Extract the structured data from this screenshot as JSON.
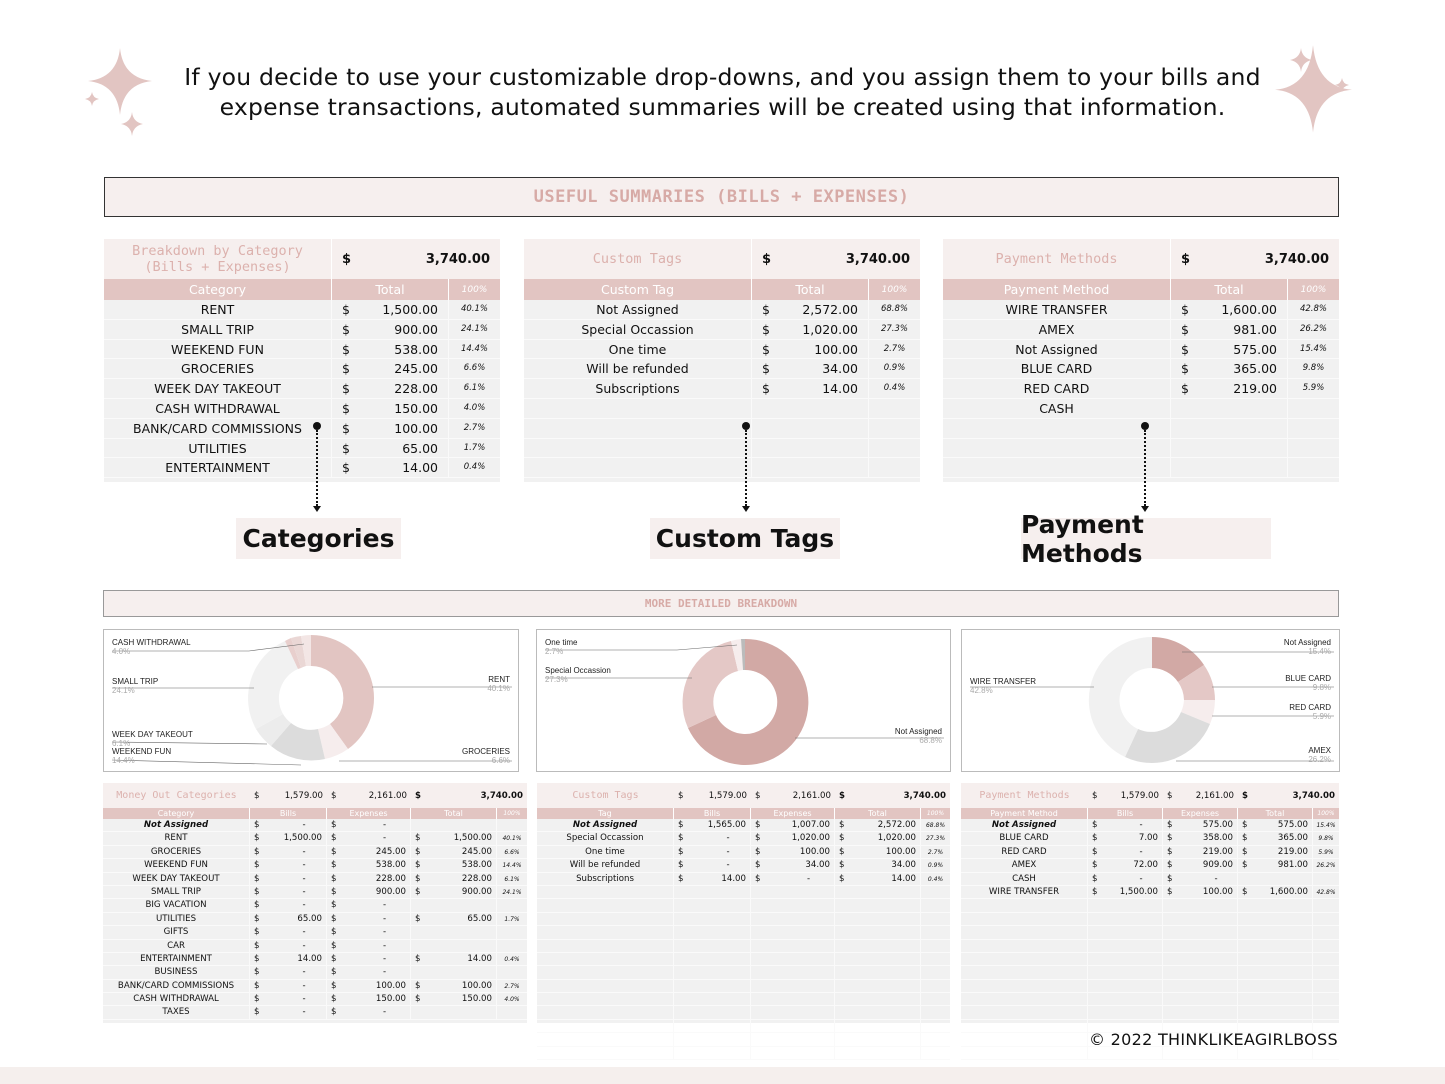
{
  "intro": {
    "line1": "If you decide to use your customizable drop-downs, and you assign them to your bills and",
    "line2": "expense transactions, automated summaries will be created using that information."
  },
  "colors": {
    "accent_pink": "#e2c5c2",
    "title_pink": "#d7aaa6",
    "panel_bg": "#f6efee",
    "row_bg": "#f1f1f1"
  },
  "banner_title": "USEFUL SUMMARIES (BILLS + EXPENSES)",
  "summaries": {
    "category": {
      "title_line1": "Breakdown by Category",
      "title_line2": "(Bills + Expenses)",
      "currency": "$",
      "total": "3,740.00",
      "col_name": "Category",
      "col_total": "Total",
      "col_pct": "100%",
      "rows": [
        {
          "name": "RENT",
          "cur": "$",
          "value": "1,500.00",
          "pct": "40.1%"
        },
        {
          "name": "SMALL TRIP",
          "cur": "$",
          "value": "900.00",
          "pct": "24.1%"
        },
        {
          "name": "WEEKEND FUN",
          "cur": "$",
          "value": "538.00",
          "pct": "14.4%"
        },
        {
          "name": "GROCERIES",
          "cur": "$",
          "value": "245.00",
          "pct": "6.6%"
        },
        {
          "name": "WEEK DAY TAKEOUT",
          "cur": "$",
          "value": "228.00",
          "pct": "6.1%"
        },
        {
          "name": "CASH WITHDRAWAL",
          "cur": "$",
          "value": "150.00",
          "pct": "4.0%"
        },
        {
          "name": "BANK/CARD COMMISSIONS",
          "cur": "$",
          "value": "100.00",
          "pct": "2.7%"
        },
        {
          "name": "UTILITIES",
          "cur": "$",
          "value": "65.00",
          "pct": "1.7%"
        },
        {
          "name": "ENTERTAINMENT",
          "cur": "$",
          "value": "14.00",
          "pct": "0.4%"
        }
      ]
    },
    "tags": {
      "title_line1": "Custom Tags",
      "currency": "$",
      "total": "3,740.00",
      "col_name": "Custom Tag",
      "col_total": "Total",
      "col_pct": "100%",
      "rows": [
        {
          "name": "Not Assigned",
          "cur": "$",
          "value": "2,572.00",
          "pct": "68.8%"
        },
        {
          "name": "Special Occassion",
          "cur": "$",
          "value": "1,020.00",
          "pct": "27.3%"
        },
        {
          "name": "One time",
          "cur": "$",
          "value": "100.00",
          "pct": "2.7%"
        },
        {
          "name": "Will be refunded",
          "cur": "$",
          "value": "34.00",
          "pct": "0.9%"
        },
        {
          "name": "Subscriptions",
          "cur": "$",
          "value": "14.00",
          "pct": "0.4%"
        },
        {
          "name": "",
          "cur": "",
          "value": "",
          "pct": ""
        },
        {
          "name": "",
          "cur": "",
          "value": "",
          "pct": ""
        },
        {
          "name": "",
          "cur": "",
          "value": "",
          "pct": ""
        },
        {
          "name": "",
          "cur": "",
          "value": "",
          "pct": ""
        }
      ]
    },
    "payment": {
      "title_line1": "Payment Methods",
      "currency": "$",
      "total": "3,740.00",
      "col_name": "Payment Method",
      "col_total": "Total",
      "col_pct": "100%",
      "rows": [
        {
          "name": "WIRE TRANSFER",
          "cur": "$",
          "value": "1,600.00",
          "pct": "42.8%"
        },
        {
          "name": "AMEX",
          "cur": "$",
          "value": "981.00",
          "pct": "26.2%"
        },
        {
          "name": "Not Assigned",
          "cur": "$",
          "value": "575.00",
          "pct": "15.4%"
        },
        {
          "name": "BLUE CARD",
          "cur": "$",
          "value": "365.00",
          "pct": "9.8%"
        },
        {
          "name": "RED CARD",
          "cur": "$",
          "value": "219.00",
          "pct": "5.9%"
        },
        {
          "name": "CASH",
          "cur": "",
          "value": "",
          "pct": ""
        },
        {
          "name": "",
          "cur": "",
          "value": "",
          "pct": ""
        },
        {
          "name": "",
          "cur": "",
          "value": "",
          "pct": ""
        },
        {
          "name": "",
          "cur": "",
          "value": "",
          "pct": ""
        }
      ]
    }
  },
  "labels": {
    "categories": "Categories",
    "custom_tags": "Custom Tags",
    "payment_methods": "Payment Methods"
  },
  "banner2_title": "MORE DETAILED BREAKDOWN",
  "charts": {
    "category": [
      {
        "name": "CASH WITHDRAWAL",
        "pct": "4.0%"
      },
      {
        "name": "SMALL TRIP",
        "pct": "24.1%"
      },
      {
        "name": "WEEK DAY TAKEOUT",
        "pct": "6.1%"
      },
      {
        "name": "WEEKEND FUN",
        "pct": "14.4%"
      },
      {
        "name": "RENT",
        "pct": "40.1%"
      },
      {
        "name": "GROCERIES",
        "pct": "6.6%"
      }
    ],
    "tags": [
      {
        "name": "One time",
        "pct": "2.7%"
      },
      {
        "name": "Special Occassion",
        "pct": "27.3%"
      },
      {
        "name": "Not Assigned",
        "pct": "68.8%"
      }
    ],
    "payment": [
      {
        "name": "WIRE TRANSFER",
        "pct": "42.8%"
      },
      {
        "name": "Not Assigned",
        "pct": "15.4%"
      },
      {
        "name": "BLUE CARD",
        "pct": "9.8%"
      },
      {
        "name": "RED CARD",
        "pct": "5.9%"
      },
      {
        "name": "AMEX",
        "pct": "26.2%"
      }
    ]
  },
  "details": {
    "category": {
      "title": "Money Out Categories",
      "bills_total": "1,579.00",
      "expenses_total": "2,161.00",
      "grand_total": "3,740.00",
      "cur": "$",
      "cols": [
        "Category",
        "Bills",
        "Expenses",
        "Total",
        "100%"
      ],
      "rows": [
        {
          "name": "Not Assigned",
          "bold": true,
          "bills": "-",
          "exp": "-",
          "total": "",
          "pct": ""
        },
        {
          "name": "RENT",
          "bills": "1,500.00",
          "exp": "-",
          "total": "1,500.00",
          "pct": "40.1%"
        },
        {
          "name": "GROCERIES",
          "bills": "-",
          "exp": "245.00",
          "total": "245.00",
          "pct": "6.6%"
        },
        {
          "name": "WEEKEND FUN",
          "bills": "-",
          "exp": "538.00",
          "total": "538.00",
          "pct": "14.4%"
        },
        {
          "name": "WEEK DAY TAKEOUT",
          "bills": "-",
          "exp": "228.00",
          "total": "228.00",
          "pct": "6.1%"
        },
        {
          "name": "SMALL TRIP",
          "bills": "-",
          "exp": "900.00",
          "total": "900.00",
          "pct": "24.1%"
        },
        {
          "name": "BIG VACATION",
          "bills": "-",
          "exp": "-",
          "total": "",
          "pct": ""
        },
        {
          "name": "UTILITIES",
          "bills": "65.00",
          "exp": "-",
          "total": "65.00",
          "pct": "1.7%"
        },
        {
          "name": "GIFTS",
          "bills": "-",
          "exp": "-",
          "total": "",
          "pct": ""
        },
        {
          "name": "CAR",
          "bills": "-",
          "exp": "-",
          "total": "",
          "pct": ""
        },
        {
          "name": "ENTERTAINMENT",
          "bills": "14.00",
          "exp": "-",
          "total": "14.00",
          "pct": "0.4%"
        },
        {
          "name": "BUSINESS",
          "bills": "-",
          "exp": "-",
          "total": "",
          "pct": ""
        },
        {
          "name": "BANK/CARD COMMISSIONS",
          "bills": "-",
          "exp": "100.00",
          "total": "100.00",
          "pct": "2.7%"
        },
        {
          "name": "CASH WITHDRAWAL",
          "bills": "-",
          "exp": "150.00",
          "total": "150.00",
          "pct": "4.0%"
        },
        {
          "name": "TAXES",
          "bills": "-",
          "exp": "-",
          "total": "",
          "pct": ""
        }
      ]
    },
    "tags": {
      "title": "Custom Tags",
      "bills_total": "1,579.00",
      "expenses_total": "2,161.00",
      "grand_total": "3,740.00",
      "cur": "$",
      "cols": [
        "Tag",
        "Bills",
        "Expenses",
        "Total",
        "100%"
      ],
      "rows": [
        {
          "name": "Not Assigned",
          "bold": true,
          "bills": "1,565.00",
          "exp": "1,007.00",
          "total": "2,572.00",
          "pct": "68.8%"
        },
        {
          "name": "Special Occassion",
          "bills": "-",
          "exp": "1,020.00",
          "total": "1,020.00",
          "pct": "27.3%"
        },
        {
          "name": "One time",
          "bills": "-",
          "exp": "100.00",
          "total": "100.00",
          "pct": "2.7%"
        },
        {
          "name": "Will be refunded",
          "bills": "-",
          "exp": "34.00",
          "total": "34.00",
          "pct": "0.9%"
        },
        {
          "name": "Subscriptions",
          "bills": "14.00",
          "exp": "-",
          "total": "14.00",
          "pct": "0.4%"
        }
      ]
    },
    "payment": {
      "title": "Payment Methods",
      "bills_total": "1,579.00",
      "expenses_total": "2,161.00",
      "grand_total": "3,740.00",
      "cur": "$",
      "cols": [
        "Payment Method",
        "Bills",
        "Expenses",
        "Total",
        "100%"
      ],
      "rows": [
        {
          "name": "Not Assigned",
          "bold": true,
          "bills": "-",
          "exp": "575.00",
          "total": "575.00",
          "pct": "15.4%"
        },
        {
          "name": "BLUE CARD",
          "bills": "7.00",
          "exp": "358.00",
          "total": "365.00",
          "pct": "9.8%"
        },
        {
          "name": "RED CARD",
          "bills": "-",
          "exp": "219.00",
          "total": "219.00",
          "pct": "5.9%"
        },
        {
          "name": "AMEX",
          "bills": "72.00",
          "exp": "909.00",
          "total": "981.00",
          "pct": "26.2%"
        },
        {
          "name": "CASH",
          "bills": "-",
          "exp": "-",
          "total": "",
          "pct": ""
        },
        {
          "name": "WIRE TRANSFER",
          "bills": "1,500.00",
          "exp": "100.00",
          "total": "1,600.00",
          "pct": "42.8%"
        }
      ]
    }
  },
  "footer": "©  2022 THINKLIKEAGIRLBOSS"
}
